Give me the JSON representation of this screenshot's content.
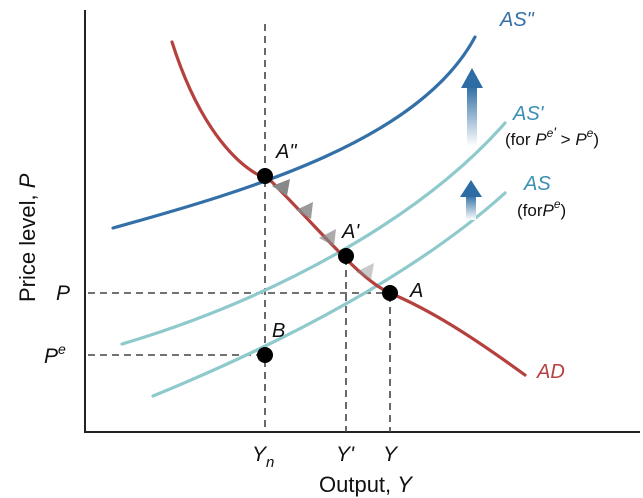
{
  "axes": {
    "x_label": "Output, ",
    "x_var": "Y",
    "y_label": "Price level, ",
    "y_var": "P"
  },
  "ticks": {
    "p": "P",
    "pe_base": "P",
    "pe_sup": "e",
    "yn_base": "Y",
    "yn_sub": "n",
    "y_prime": "Y'",
    "y": "Y"
  },
  "curves": {
    "ad": {
      "label": "AD",
      "color": "#b5413f"
    },
    "as": {
      "label": "AS",
      "note_open": "(for",
      "note_base": "P",
      "note_sup": "e",
      "note_close": ")",
      "color": "#8ec9cc"
    },
    "as_prime": {
      "label": "AS'",
      "note_open": "(for ",
      "note_base1": "P",
      "note_sup1": "e",
      "note_prime": "'",
      "note_gt": " > ",
      "note_base2": "P",
      "note_sup2": "e",
      "note_close": ")",
      "color": "#8ec9cc"
    },
    "as_double": {
      "label": "AS\"",
      "color": "#3470a8"
    }
  },
  "points": {
    "a": "A",
    "a_prime": "A'",
    "a_double": "A\"",
    "b": "B"
  },
  "colors": {
    "axis": "#222222",
    "shift_arrow": "#2e6da4",
    "path_arrow": "#888888",
    "point": "#000000"
  }
}
